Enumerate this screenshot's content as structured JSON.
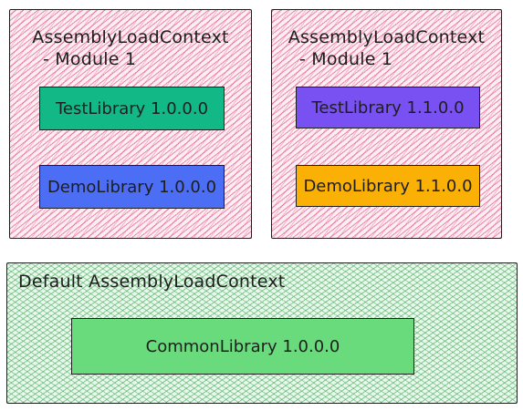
{
  "contexts": {
    "module1_a": {
      "title_line1": "AssemblyLoadContext",
      "title_line2": "- Module 1",
      "libraries": [
        {
          "label": "TestLibrary 1.0.0.0",
          "color": "#12b886"
        },
        {
          "label": "DemoLibrary 1.0.0.0",
          "color": "#4c6ef5"
        }
      ]
    },
    "module1_b": {
      "title_line1": "AssemblyLoadContext",
      "title_line2": "- Module 1",
      "libraries": [
        {
          "label": "TestLibrary 1.1.0.0",
          "color": "#7950f2"
        },
        {
          "label": "DemoLibrary 1.1.0.0",
          "color": "#fab005"
        }
      ]
    },
    "default": {
      "title": "Default AssemblyLoadContext",
      "libraries": [
        {
          "label": "CommonLibrary 1.0.0.0",
          "color": "#69db7c"
        }
      ]
    }
  },
  "colors": {
    "context_module_fill": "#e03170",
    "context_default_fill": "#40c057"
  }
}
